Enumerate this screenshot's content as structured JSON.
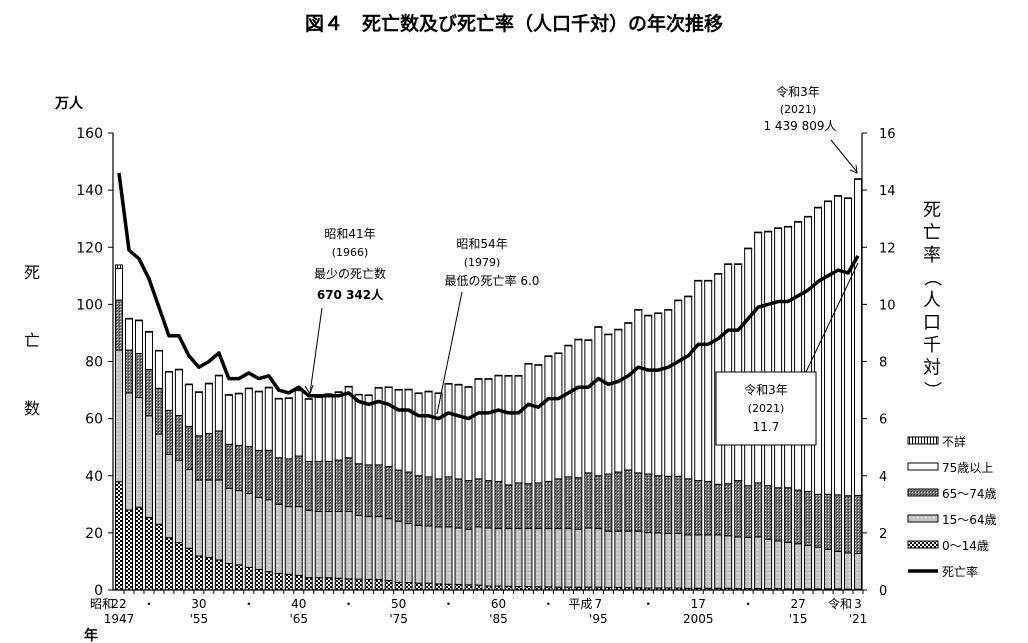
{
  "chart_data": {
    "type": "bar",
    "title": "図４　死亡数及び死亡率（人口千対）の年次推移",
    "ylabel_left": "死亡数",
    "yunit_left": "万人",
    "ylabel_right": "死亡率（人口千対）",
    "xunit": "年",
    "ylim_left": [
      0,
      160
    ],
    "ylim_right": [
      0,
      16
    ],
    "yticks_left": [
      0,
      20,
      40,
      60,
      80,
      100,
      120,
      140,
      160
    ],
    "yticks_right": [
      0,
      2,
      4,
      6,
      8,
      10,
      12,
      14,
      16
    ],
    "grid": false,
    "legend_position": "right",
    "xtick_labels": [
      {
        "year": 1947,
        "era": "昭和",
        "top": "22",
        "bottom": "1947"
      },
      {
        "year": 1950,
        "top": "・",
        "bottom": ""
      },
      {
        "year": 1955,
        "top": "30",
        "bottom": "'55"
      },
      {
        "year": 1960,
        "top": "・",
        "bottom": ""
      },
      {
        "year": 1965,
        "top": "40",
        "bottom": "'65"
      },
      {
        "year": 1970,
        "top": "・",
        "bottom": ""
      },
      {
        "year": 1975,
        "top": "50",
        "bottom": "'75"
      },
      {
        "year": 1980,
        "top": "・",
        "bottom": ""
      },
      {
        "year": 1985,
        "top": "60",
        "bottom": "'85"
      },
      {
        "year": 1990,
        "top": "・",
        "bottom": ""
      },
      {
        "year": 1995,
        "era": "平成",
        "top": "7",
        "bottom": "'95"
      },
      {
        "year": 2000,
        "top": "・",
        "bottom": ""
      },
      {
        "year": 2005,
        "top": "17",
        "bottom": "2005"
      },
      {
        "year": 2010,
        "top": "・",
        "bottom": ""
      },
      {
        "year": 2015,
        "top": "27",
        "bottom": "'15"
      },
      {
        "year": 2021,
        "era": "令和",
        "top": "3",
        "bottom": "'21"
      }
    ],
    "years": [
      1947,
      1948,
      1949,
      1950,
      1951,
      1952,
      1953,
      1954,
      1955,
      1956,
      1957,
      1958,
      1959,
      1960,
      1961,
      1962,
      1963,
      1964,
      1965,
      1966,
      1967,
      1968,
      1969,
      1970,
      1971,
      1972,
      1973,
      1974,
      1975,
      1976,
      1977,
      1978,
      1979,
      1980,
      1981,
      1982,
      1983,
      1984,
      1985,
      1986,
      1987,
      1988,
      1989,
      1990,
      1991,
      1992,
      1993,
      1994,
      1995,
      1996,
      1997,
      1998,
      1999,
      2000,
      2001,
      2002,
      2003,
      2004,
      2005,
      2006,
      2007,
      2008,
      2009,
      2010,
      2011,
      2012,
      2013,
      2014,
      2015,
      2016,
      2017,
      2018,
      2019,
      2020,
      2021
    ],
    "total_deaths": [
      113.8,
      95.1,
      94.5,
      90.5,
      83.9,
      76.5,
      77.3,
      72.1,
      69.4,
      72.4,
      75.2,
      68.4,
      68.9,
      70.7,
      69.6,
      71.0,
      67.1,
      67.3,
      70.0,
      67.0,
      67.6,
      68.7,
      69.4,
      71.3,
      68.5,
      68.3,
      70.9,
      71.1,
      70.2,
      70.3,
      69.0,
      69.6,
      69.0,
      72.3,
      72.0,
      71.2,
      74.0,
      74.0,
      75.2,
      75.1,
      75.1,
      79.3,
      78.9,
      82.0,
      83.0,
      85.7,
      87.8,
      87.6,
      92.2,
      89.6,
      91.3,
      93.6,
      98.2,
      96.2,
      97.0,
      98.2,
      101.5,
      102.9,
      108.4,
      108.4,
      110.8,
      114.2,
      114.2,
      119.7,
      125.3,
      125.6,
      126.8,
      127.3,
      129.0,
      130.8,
      134.0,
      136.2,
      138.1,
      137.3,
      144.0
    ],
    "series": [
      {
        "name": "0〜14歳",
        "values": [
          37.9,
          28,
          29,
          25.4,
          23,
          18.3,
          16.6,
          14.6,
          11.9,
          11.4,
          10.5,
          9.3,
          8.8,
          7.9,
          7.2,
          6.4,
          5.8,
          5.5,
          5.1,
          4.3,
          4.3,
          4.3,
          4.1,
          3.9,
          3.8,
          3.7,
          3.7,
          3.3,
          2.7,
          2.6,
          2.4,
          2.4,
          2.1,
          2.0,
          1.9,
          1.8,
          1.7,
          1.4,
          1.4,
          1.3,
          1.2,
          1.2,
          1.1,
          1.1,
          1.0,
          1.0,
          1.0,
          1.0,
          1.0,
          0.9,
          0.9,
          0.8,
          0.8,
          0.7,
          0.7,
          0.7,
          0.7,
          0.6,
          0.6,
          0.6,
          0.6,
          0.6,
          0.5,
          0.5,
          0.5,
          0.5,
          0.5,
          0.4,
          0.4,
          0.4,
          0.4,
          0.4,
          0.4,
          0.3,
          0.3
        ]
      },
      {
        "name": "15〜64歳",
        "values": [
          46.1,
          41,
          38.4,
          35.6,
          31.6,
          29.2,
          28.8,
          27.6,
          26.6,
          27.1,
          28,
          26.3,
          26,
          25.9,
          25.2,
          25.2,
          24.2,
          23.7,
          24.1,
          23.6,
          23.2,
          23.2,
          23.4,
          23.6,
          22.3,
          22,
          22,
          21.7,
          21.4,
          20.7,
          20.2,
          20,
          20,
          20.1,
          19.8,
          19.5,
          20.4,
          20.3,
          20.1,
          20.2,
          20.3,
          20.3,
          20.4,
          20.4,
          20.5,
          20.5,
          20.3,
          20.7,
          20.5,
          19.7,
          19.7,
          19.8,
          19.8,
          19.4,
          19.3,
          19.1,
          19.1,
          18.7,
          18.7,
          18.7,
          18.7,
          18.4,
          18.1,
          17.9,
          18.1,
          17.3,
          16.7,
          16.3,
          15.8,
          15.2,
          14.6,
          13.8,
          13.1,
          12.7,
          12.5
        ]
      },
      {
        "name": "65〜74歳",
        "values": [
          17.5,
          15,
          15.4,
          16.2,
          16,
          15.4,
          15.7,
          15.1,
          15.5,
          16.3,
          17.2,
          15.4,
          15.8,
          16.4,
          16.5,
          17.3,
          16.3,
          16.7,
          17.7,
          17.1,
          17.5,
          17.5,
          18,
          18.8,
          18.1,
          18.1,
          18.1,
          18.2,
          17.9,
          18,
          17.4,
          17.2,
          16.8,
          17.5,
          17.2,
          17,
          16.8,
          16.6,
          16.5,
          15.3,
          16,
          15.7,
          16,
          16.5,
          17.4,
          18.1,
          18,
          19.3,
          18.5,
          20,
          20.7,
          21.4,
          20.4,
          20.5,
          20,
          20,
          20,
          19.6,
          19,
          18.7,
          17.7,
          18.2,
          19.7,
          18.1,
          18.9,
          18.7,
          18.6,
          19.1,
          18.8,
          18.9,
          18.5,
          19.3,
          19.8,
          20,
          20.3
        ]
      },
      {
        "name": "75歳以上",
        "values": "total_deaths minus other groups"
      },
      {
        "name": "不詳",
        "values": [
          1.2,
          0.2,
          0.2,
          0.2,
          0.2,
          0.2,
          0.2,
          0.2,
          0.2,
          0.2,
          0.2,
          0.2,
          0.2,
          0.2,
          0.2,
          0.2,
          0.2,
          0.2,
          0.2,
          0.2,
          0.2,
          0.2,
          0.2,
          0.2,
          0.2,
          0.2,
          0.2,
          0.2,
          0.2,
          0.2,
          0.2,
          0.2,
          0.2,
          0.2,
          0.2,
          0.2,
          0.2,
          0.2,
          0.2,
          0.2,
          0.2,
          0.2,
          0.2,
          0.2,
          0.2,
          0.2,
          0.2,
          0.2,
          0.2,
          0.2,
          0.2,
          0.2,
          0.2,
          0.2,
          0.2,
          0.2,
          0.2,
          0.2,
          0.2,
          0.2,
          0.2,
          0.2,
          0.2,
          0.2,
          0.2,
          0.2,
          0.2,
          0.2,
          0.2,
          0.2,
          0.2,
          0.2,
          0.2,
          0.2,
          0.2
        ]
      }
    ],
    "death_rate": {
      "name": "死亡率",
      "values": [
        14.6,
        11.9,
        11.6,
        10.9,
        9.9,
        8.9,
        8.9,
        8.2,
        7.8,
        8.0,
        8.3,
        7.4,
        7.4,
        7.6,
        7.4,
        7.5,
        7.0,
        6.9,
        7.1,
        6.8,
        6.8,
        6.8,
        6.8,
        6.9,
        6.6,
        6.5,
        6.6,
        6.5,
        6.3,
        6.3,
        6.1,
        6.1,
        6.0,
        6.2,
        6.1,
        6.0,
        6.2,
        6.2,
        6.3,
        6.2,
        6.2,
        6.5,
        6.4,
        6.7,
        6.7,
        6.9,
        7.1,
        7.1,
        7.4,
        7.2,
        7.3,
        7.5,
        7.8,
        7.7,
        7.7,
        7.8,
        8.0,
        8.2,
        8.6,
        8.6,
        8.8,
        9.1,
        9.1,
        9.5,
        9.9,
        10.0,
        10.1,
        10.1,
        10.3,
        10.5,
        10.8,
        11.0,
        11.2,
        11.1,
        11.7
      ]
    },
    "legend": [
      "不詳",
      "75歳以上",
      "65〜74歳",
      "15〜64歳",
      "0〜14歳",
      "死亡率"
    ],
    "annotations": {
      "min_deaths": {
        "era": "昭和41年",
        "year": "(1966)",
        "label": "最少の死亡数",
        "value": "670 342人"
      },
      "min_rate": {
        "era": "昭和54年",
        "year": "(1979)",
        "label": "最低の死亡率 6.0"
      },
      "latest_deaths": {
        "era": "令和3年",
        "year": "(2021)",
        "value": "1 439 809人"
      },
      "latest_rate": {
        "era": "令和3年",
        "year": "(2021)",
        "value": "11.7"
      }
    }
  }
}
